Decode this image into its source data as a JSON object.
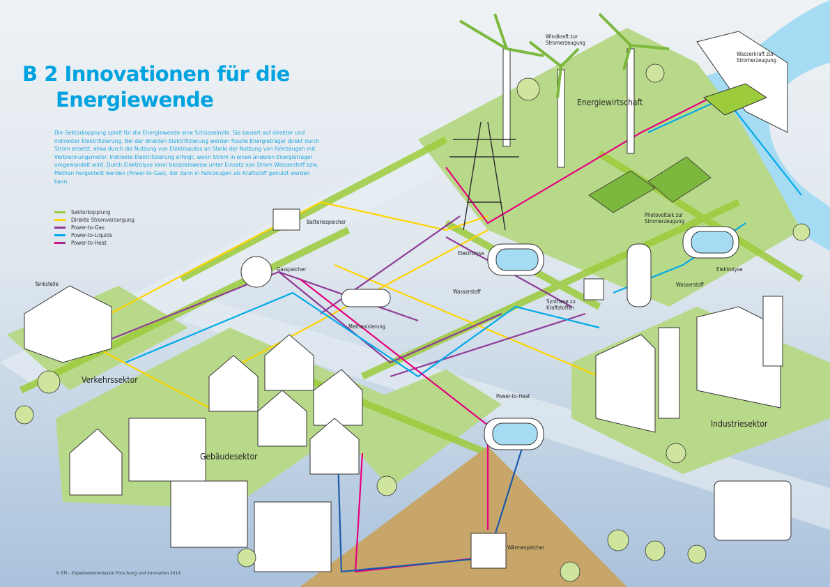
{
  "title": {
    "line1": "B 2 Innovationen für die",
    "line2": "Energiewende"
  },
  "intro": "Die Sektorkopplung spielt für die Energiewende eine Schüsselrolle. Sie basiert auf direkter und indirekter Elektrifizierung. Bei der direkten Elektrifizierung werden fossile Energieträger direkt durch Strom ersetzt, etwa durch die Nutzung von Elektroautos an Stelle der Nutzung von Fahrzeugen mit Verbrennungsmotor. Indirekte Elektrifizierung erfolgt, wenn Strom in einen anderen Energieträger umgewandelt wird. Durch Elektrolyse kann beispielsweise unter Einsatz von Strom Wasserstoff bzw. Methan hergestellt werden (Power-to-Gas), der dann in Fahrzeugen als Kraftstoff genutzt werden kann.",
  "legend": [
    {
      "label": "Sektorkopplung",
      "color": "#9ccb3b"
    },
    {
      "label": "Direkte Stromversorgung",
      "color": "#ffd400"
    },
    {
      "label": "Power-to-Gas",
      "color": "#8e3a96"
    },
    {
      "label": "Power-to-Liquids",
      "color": "#00a9e8"
    },
    {
      "label": "Power-to-Heat",
      "color": "#e6007e"
    }
  ],
  "labels": {
    "windkraft": "Windkraft zur Stromerzeugung",
    "wasserkraft": "Wasserkraft zur Stromerzeugung",
    "batteriespeicher": "Batteriespeicher",
    "gasspeicher": "Gasspeicher",
    "elektrolyse1": "Elektrolyse",
    "wasserstoff1": "Wasserstoff",
    "photovoltaik": "Photovoltaik zur Stromerzeugung",
    "elektrolyse2": "Elektrolyse",
    "wasserstoff2": "Wasserstoff",
    "synthese": "Synthese zu Kraftstoffen",
    "methanisierung": "Methanisierung",
    "tankstelle": "Tankstelle",
    "power_to_heat": "Power-to-Heat",
    "waermespeicher": "Wärmespeicher"
  },
  "sectors": {
    "energiewirtschaft": "Energiewirtschaft",
    "verkehrssektor": "Verkehrssektor",
    "gebaeudesektor": "Gebäudesektor",
    "industriesektor": "Industriesektor"
  },
  "footer": "© EFI – Expertenkommission Forschung und Innovation 2019"
}
